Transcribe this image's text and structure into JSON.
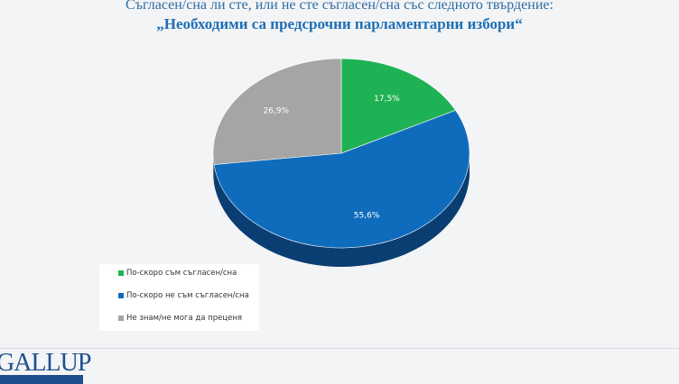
{
  "chart_data": {
    "type": "pie",
    "title": "Съгласен/сна ли сте, или не сте съгласен/сна със следното твърдение:",
    "subtitle": "„Необходими са предсрочни парламентарни избори“",
    "slices": [
      {
        "name": "По-скоро съм съгласен/сна",
        "value": 17.5,
        "label": "17,5%",
        "color": "#1fb254",
        "side": "#138a3e"
      },
      {
        "name": "По-скоро не съм съгласен/сна",
        "value": 55.6,
        "label": "55,6%",
        "color": "#0f6cbd",
        "side": "#0b3f73"
      },
      {
        "name": "Не знам/не мога да преценя",
        "value": 26.9,
        "label": "26,9%",
        "color": "#a5a5a5",
        "side": "#707070"
      }
    ],
    "legend_position": "bottom-left",
    "three_d": true
  },
  "logo": {
    "text": "GALLUP"
  }
}
